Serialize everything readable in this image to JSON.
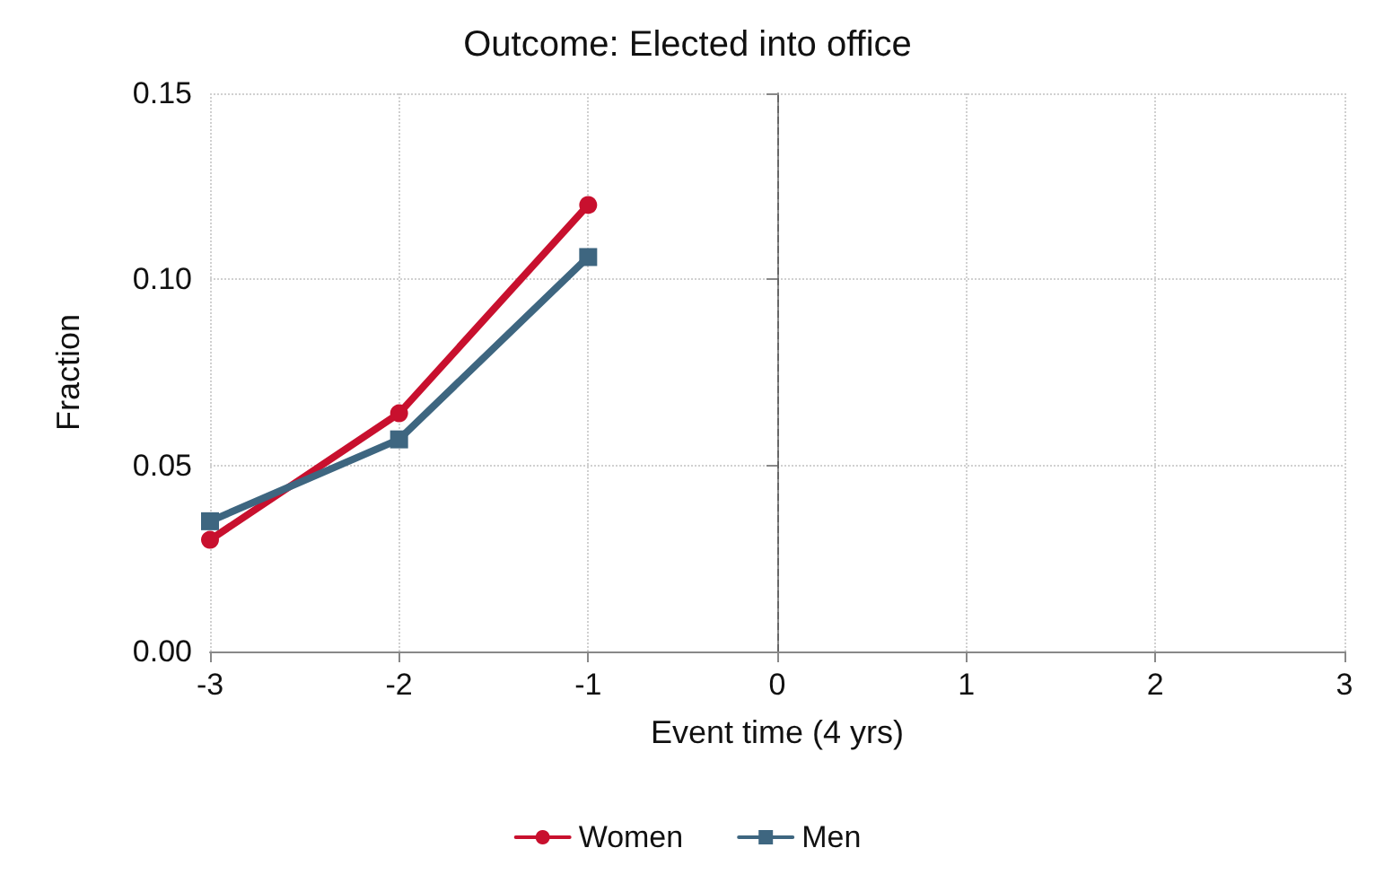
{
  "chart_data": {
    "type": "line",
    "title": "Outcome: Elected into office",
    "xlabel": "Event time (4 yrs)",
    "ylabel": "Fraction",
    "x": [
      -3,
      -2,
      -1
    ],
    "series": [
      {
        "name": "Women",
        "color": "#c8102e",
        "values": [
          0.03,
          0.064,
          0.12
        ],
        "marker": "circle"
      },
      {
        "name": "Men",
        "color": "#3e6680",
        "values": [
          0.035,
          0.057,
          0.106
        ],
        "marker": "square"
      }
    ],
    "xlim": [
      -3,
      3
    ],
    "xticks": [
      -3,
      -2,
      -1,
      0,
      1,
      2,
      3
    ],
    "ylim": [
      0,
      0.15
    ],
    "yticks": [
      {
        "value": 0,
        "label": "0.00"
      },
      {
        "value": 0.05,
        "label": "0.05"
      },
      {
        "value": 0.1,
        "label": "0.10"
      },
      {
        "value": 0.15,
        "label": "0.15"
      }
    ],
    "ref_lines": [
      {
        "axis": "x",
        "value": 0,
        "color": "#666666",
        "line_style": "dashed"
      }
    ],
    "grid": true,
    "legend": "bottom",
    "line_style": "solid"
  }
}
